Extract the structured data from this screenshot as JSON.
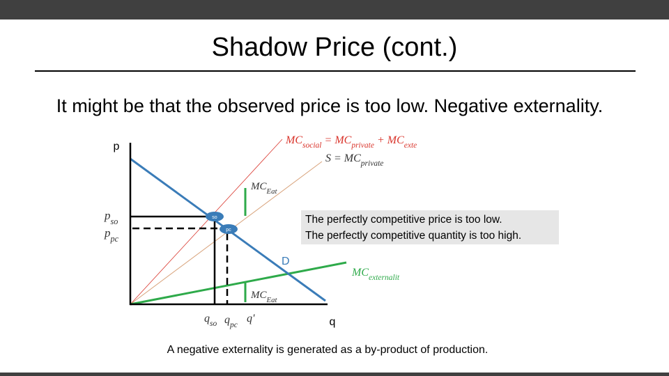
{
  "header": {
    "title": "Shadow Price (cont.)"
  },
  "subtitle": "It might be that the observed price is too low. Negative externality.",
  "diagram": {
    "y_axis_label": "p",
    "x_axis_label": "q",
    "social_curve_label": [
      {
        "t": "MC"
      },
      {
        "s": "social"
      },
      {
        "t": " = MC"
      },
      {
        "s": "private"
      },
      {
        "t": " + MC"
      },
      {
        "s": "exte"
      }
    ],
    "supply_curve_label": [
      {
        "t": "S = "
      },
      {
        "t": "MC"
      },
      {
        "s": "private"
      }
    ],
    "demand_label": "D",
    "externality_curve_label": [
      {
        "t": "MC"
      },
      {
        "s": "externalit"
      }
    ],
    "gap_label_upper": [
      {
        "t": "MC"
      },
      {
        "s": "Eat"
      }
    ],
    "gap_label_lower": [
      {
        "t": "MC"
      },
      {
        "s": "Eat"
      }
    ],
    "price_so": [
      {
        "t": "p"
      },
      {
        "s": "so"
      }
    ],
    "price_pc": [
      {
        "t": "p"
      },
      {
        "s": "pc"
      }
    ],
    "qty_so": [
      {
        "t": "q"
      },
      {
        "s": "so"
      }
    ],
    "qty_pc": [
      {
        "t": "q"
      },
      {
        "s": "pc"
      }
    ],
    "qty_prime": "q'",
    "marker_so": "so",
    "marker_pc": "pc",
    "callout": [
      "The perfectly competitive price is too low.",
      "The perfectly competitive quantity is too high."
    ]
  },
  "footer": "A negative externality is generated as a by-product of production."
}
